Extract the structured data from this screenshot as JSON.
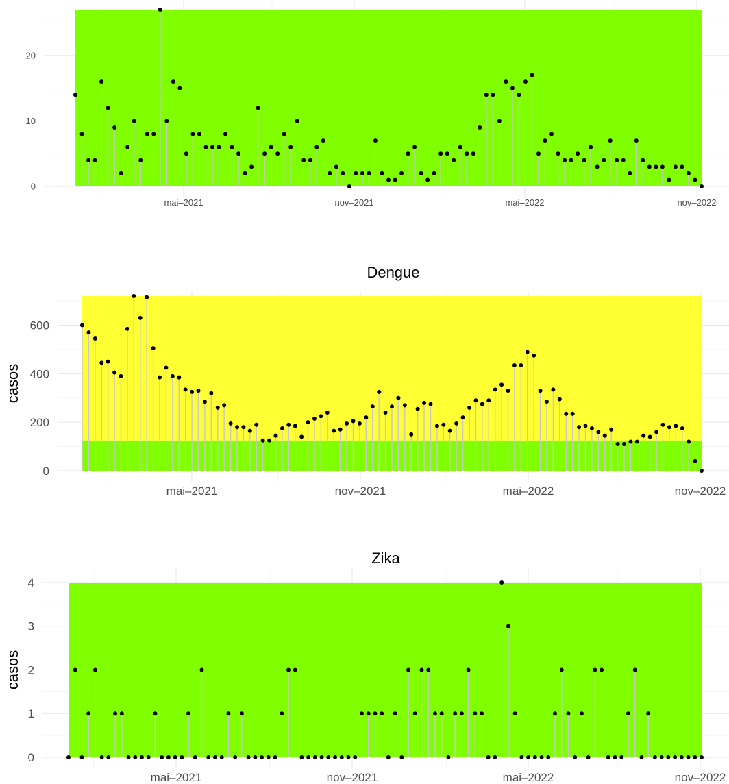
{
  "chart_data": [
    {
      "type": "lollipop",
      "title": "",
      "xlabel": "",
      "ylabel": "",
      "x_start": "2021-01-31",
      "x_step_days": 7,
      "x_ticks": [
        "mai–2021",
        "nov–2021",
        "mai–2022",
        "nov–2022"
      ],
      "ylim": [
        0,
        27
      ],
      "y_ticks": [
        0,
        10,
        20
      ],
      "threshold_bands": [
        {
          "from": 0,
          "to": 27,
          "color": "#7FFF00"
        }
      ],
      "values": [
        14,
        8,
        4,
        4,
        16,
        12,
        9,
        2,
        6,
        10,
        4,
        8,
        8,
        27,
        10,
        16,
        15,
        5,
        8,
        8,
        6,
        6,
        6,
        8,
        6,
        5,
        2,
        3,
        12,
        5,
        6,
        5,
        8,
        6,
        10,
        4,
        4,
        6,
        7,
        2,
        3,
        2,
        0,
        2,
        2,
        2,
        7,
        2,
        1,
        1,
        2,
        5,
        6,
        2,
        1,
        2,
        5,
        5,
        4,
        6,
        5,
        5,
        9,
        14,
        14,
        10,
        16,
        15,
        14,
        16,
        17,
        5,
        7,
        8,
        5,
        4,
        4,
        5,
        4,
        6,
        3,
        4,
        7,
        4,
        4,
        2,
        7,
        4,
        3,
        3,
        3,
        1,
        3,
        3,
        2,
        1,
        0
      ]
    },
    {
      "type": "lollipop",
      "title": "Dengue",
      "xlabel": "",
      "ylabel": "casos",
      "x_start": "2021-01-31",
      "x_step_days": 7,
      "x_ticks": [
        "mai–2021",
        "nov–2021",
        "mai–2022",
        "nov–2022"
      ],
      "ylim": [
        0,
        720
      ],
      "y_ticks": [
        0,
        200,
        400,
        600
      ],
      "threshold_bands": [
        {
          "from": 0,
          "to": 125,
          "color": "#7FFF00"
        },
        {
          "from": 125,
          "to": 720,
          "color": "#FFFF33"
        }
      ],
      "values": [
        600,
        570,
        545,
        445,
        450,
        405,
        390,
        585,
        720,
        630,
        715,
        505,
        385,
        425,
        390,
        385,
        335,
        325,
        330,
        285,
        320,
        260,
        270,
        195,
        180,
        180,
        165,
        190,
        125,
        125,
        145,
        175,
        190,
        185,
        140,
        200,
        215,
        225,
        240,
        165,
        170,
        195,
        205,
        195,
        220,
        265,
        325,
        240,
        265,
        300,
        270,
        150,
        255,
        280,
        275,
        185,
        190,
        165,
        195,
        220,
        260,
        290,
        275,
        290,
        335,
        355,
        330,
        435,
        435,
        490,
        475,
        330,
        285,
        335,
        295,
        235,
        235,
        180,
        185,
        175,
        160,
        145,
        170,
        110,
        110,
        120,
        120,
        145,
        140,
        160,
        190,
        180,
        185,
        175,
        120,
        40,
        0
      ]
    },
    {
      "type": "lollipop",
      "title": "Zika",
      "xlabel": "",
      "ylabel": "casos",
      "x_start": "2021-01-31",
      "x_step_days": 7,
      "x_ticks": [
        "mai–2021",
        "nov–2021",
        "mai–2022",
        "nov–2022"
      ],
      "ylim": [
        0,
        4
      ],
      "y_ticks": [
        0,
        1,
        2,
        3,
        4
      ],
      "threshold_bands": [
        {
          "from": 0,
          "to": 4,
          "color": "#7FFF00"
        }
      ],
      "values": [
        0,
        2,
        0,
        1,
        2,
        0,
        0,
        1,
        1,
        0,
        0,
        0,
        0,
        1,
        0,
        0,
        0,
        0,
        1,
        0,
        2,
        0,
        0,
        0,
        1,
        0,
        1,
        0,
        0,
        0,
        0,
        0,
        1,
        2,
        2,
        0,
        0,
        0,
        0,
        0,
        0,
        0,
        0,
        0,
        1,
        1,
        1,
        1,
        0,
        1,
        0,
        2,
        1,
        2,
        2,
        1,
        1,
        0,
        1,
        1,
        2,
        1,
        1,
        0,
        0,
        4,
        3,
        1,
        0,
        0,
        0,
        0,
        0,
        1,
        2,
        1,
        0,
        1,
        0,
        2,
        2,
        0,
        0,
        0,
        1,
        2,
        0,
        1,
        0,
        0,
        0,
        0,
        0,
        0,
        0,
        0
      ]
    }
  ]
}
